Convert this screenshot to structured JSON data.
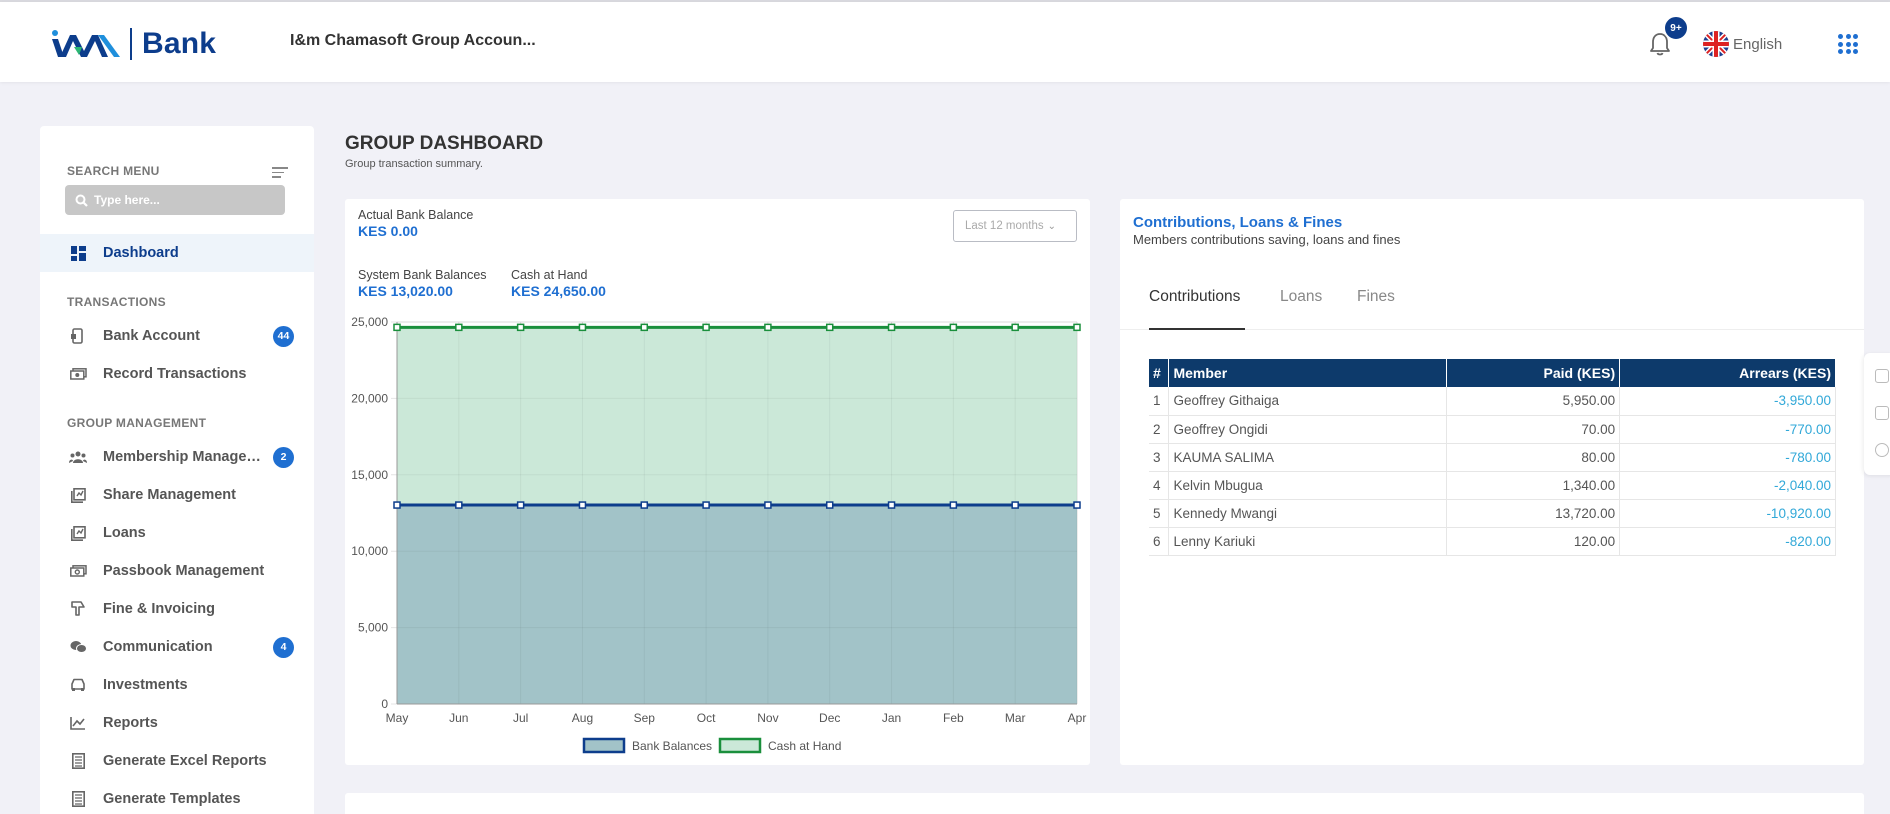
{
  "header": {
    "logo_text": "Bank",
    "group_name": "I&m Chamasoft Group Accoun...",
    "notifications_badge": "9+",
    "language": "English"
  },
  "sidebar": {
    "search_label": "SEARCH MENU",
    "search_placeholder": "Type here...",
    "dashboard": "Dashboard",
    "sections": {
      "transactions": "TRANSACTIONS",
      "group_management": "GROUP MANAGEMENT"
    },
    "transactions": [
      {
        "label": "Bank Account",
        "badge": "44",
        "icon": "bank-account-icon"
      },
      {
        "label": "Record Transactions",
        "badge": null,
        "icon": "record-transactions-icon"
      }
    ],
    "management": [
      {
        "label": "Membership Management",
        "badge": "2",
        "icon": "membership-icon"
      },
      {
        "label": "Share Management",
        "badge": null,
        "icon": "share-icon"
      },
      {
        "label": "Loans",
        "badge": null,
        "icon": "loans-icon"
      },
      {
        "label": "Passbook Management",
        "badge": null,
        "icon": "passbook-icon"
      },
      {
        "label": "Fine & Invoicing",
        "badge": null,
        "icon": "fine-icon"
      },
      {
        "label": "Communication",
        "badge": "4",
        "icon": "communication-icon"
      },
      {
        "label": "Investments",
        "badge": null,
        "icon": "investments-icon"
      },
      {
        "label": "Reports",
        "badge": null,
        "icon": "reports-icon"
      },
      {
        "label": "Generate Excel Reports",
        "badge": null,
        "icon": "excel-reports-icon"
      },
      {
        "label": "Generate Templates",
        "badge": null,
        "icon": "templates-icon"
      }
    ]
  },
  "page": {
    "title": "GROUP DASHBOARD",
    "subtitle": "Group transaction summary."
  },
  "summary": {
    "actual_bank_balance_label": "Actual Bank Balance",
    "actual_bank_balance_value": "KES 0.00",
    "system_bank_balances_label": "System Bank Balances",
    "system_bank_balances_value": "KES 13,020.00",
    "cash_at_hand_label": "Cash at Hand",
    "cash_at_hand_value": "KES 24,650.00",
    "range_select": "Last 12 months"
  },
  "chart_data": {
    "type": "area",
    "x": [
      "May",
      "Jun",
      "Jul",
      "Aug",
      "Sep",
      "Oct",
      "Nov",
      "Dec",
      "Jan",
      "Feb",
      "Mar",
      "Apr"
    ],
    "yticks": [
      "0",
      "5,000",
      "10,000",
      "15,000",
      "20,000",
      "25,000"
    ],
    "ylim": [
      0,
      25000
    ],
    "grid": true,
    "legend_position": "bottom",
    "series": [
      {
        "name": "Bank Balances",
        "values": [
          13020,
          13020,
          13020,
          13020,
          13020,
          13020,
          13020,
          13020,
          13020,
          13020,
          13020,
          13020
        ],
        "color": "#0d3d8c",
        "fill": "#a2c3c8"
      },
      {
        "name": "Cash at Hand",
        "values": [
          24650,
          24650,
          24650,
          24650,
          24650,
          24650,
          24650,
          24650,
          24650,
          24650,
          24650,
          24650
        ],
        "color": "#1a8f3c",
        "fill": "#cbe8d8"
      }
    ]
  },
  "contributions": {
    "title": "Contributions, Loans & Fines",
    "subtitle": "Members contributions saving, loans and fines",
    "tabs": [
      "Contributions",
      "Loans",
      "Fines"
    ],
    "columns": [
      "#",
      "Member",
      "Paid (KES)",
      "Arrears (KES)"
    ],
    "rows": [
      [
        "1",
        "Geoffrey Githaiga",
        "5,950.00",
        "-3,950.00"
      ],
      [
        "2",
        "Geoffrey Ongidi",
        "70.00",
        "-770.00"
      ],
      [
        "3",
        "KAUMA SALIMA",
        "80.00",
        "-780.00"
      ],
      [
        "4",
        "Kelvin Mbugua",
        "1,340.00",
        "-2,040.00"
      ],
      [
        "5",
        "Kennedy Mwangi",
        "13,720.00",
        "-10,920.00"
      ],
      [
        "6",
        "Lenny Kariuki",
        "120.00",
        "-820.00"
      ]
    ]
  },
  "colors": {
    "brand": "#0d3d8c",
    "accent": "#1f6fd1",
    "arrears": "#31a8d8",
    "table_header": "#0d3a6b"
  }
}
